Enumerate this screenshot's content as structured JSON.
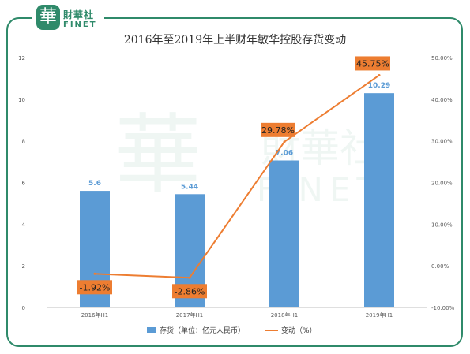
{
  "brand": {
    "logo_char": "華",
    "name_cn": "財華社",
    "name_en": "FINET",
    "color": "#2f8a6a"
  },
  "chart_data": {
    "type": "bar",
    "title": "2016年至2019年上半财年敏华控股存货变动",
    "categories": [
      "2016年H1",
      "2017年H1",
      "2018年H1",
      "2019年H1"
    ],
    "series": [
      {
        "name": "存货（单位：亿元人民币）",
        "type": "bar",
        "axis": "left",
        "values": [
          5.6,
          5.44,
          7.06,
          10.29
        ],
        "labels": [
          "5.6",
          "5.44",
          "7.06",
          "10.29"
        ],
        "color": "#5b9bd5"
      },
      {
        "name": "变动（%）",
        "type": "line",
        "axis": "right",
        "values": [
          -1.92,
          -2.86,
          29.78,
          45.75
        ],
        "labels": [
          "-1.92%",
          "-2.86%",
          "29.78%",
          "45.75%"
        ],
        "color": "#ed7d31"
      }
    ],
    "y_left": {
      "ylim": [
        0,
        12
      ],
      "ticks": [
        "0",
        "2",
        "4",
        "6",
        "8",
        "10",
        "12"
      ]
    },
    "y_right": {
      "ylim": [
        -10,
        50
      ],
      "ticks": [
        "-10.00%",
        "0.00%",
        "10.00%",
        "20.00%",
        "30.00%",
        "40.00%",
        "50.00%"
      ]
    },
    "legend_position": "bottom",
    "grid": false
  }
}
